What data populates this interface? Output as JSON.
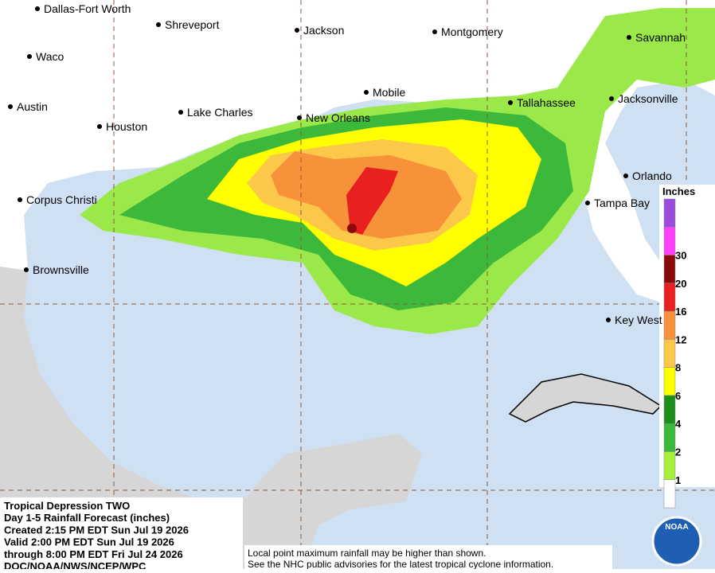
{
  "cities": [
    {
      "name": "Dallas-Fort Worth"
    },
    {
      "name": "Shreveport"
    },
    {
      "name": "Jackson"
    },
    {
      "name": "Montgomery"
    },
    {
      "name": "Savannah"
    },
    {
      "name": "Waco"
    },
    {
      "name": "Austin"
    },
    {
      "name": "Houston"
    },
    {
      "name": "Lake Charles"
    },
    {
      "name": "New Orleans"
    },
    {
      "name": "Mobile"
    },
    {
      "name": "Tallahassee"
    },
    {
      "name": "Jacksonville"
    },
    {
      "name": "Orlando"
    },
    {
      "name": "Tampa Bay"
    },
    {
      "name": "Corpus Christi"
    },
    {
      "name": "Brownsville"
    },
    {
      "name": "Key West"
    }
  ],
  "legend": {
    "title": "Inches",
    "labels": [
      "1",
      "2",
      "4",
      "6",
      "8",
      "12",
      "16",
      "20",
      "30"
    ]
  },
  "info": {
    "lines": [
      "Tropical Depression TWO",
      "Day 1-5 Rainfall Forecast (inches)",
      "Created 2:15 PM EDT Sun Jul 19 2026",
      "Valid 2:00 PM EDT Sun Jul 19 2026",
      "through 8:00 PM EDT Fri Jul 24 2026",
      "DOC/NOAA/NWS/NCEP/WPC"
    ]
  },
  "note": {
    "lines": [
      "Local point maximum rainfall may be higher than shown.",
      "See the NHC public advisories for the latest tropical cyclone information."
    ]
  },
  "logo": {
    "text": "NOAA"
  }
}
